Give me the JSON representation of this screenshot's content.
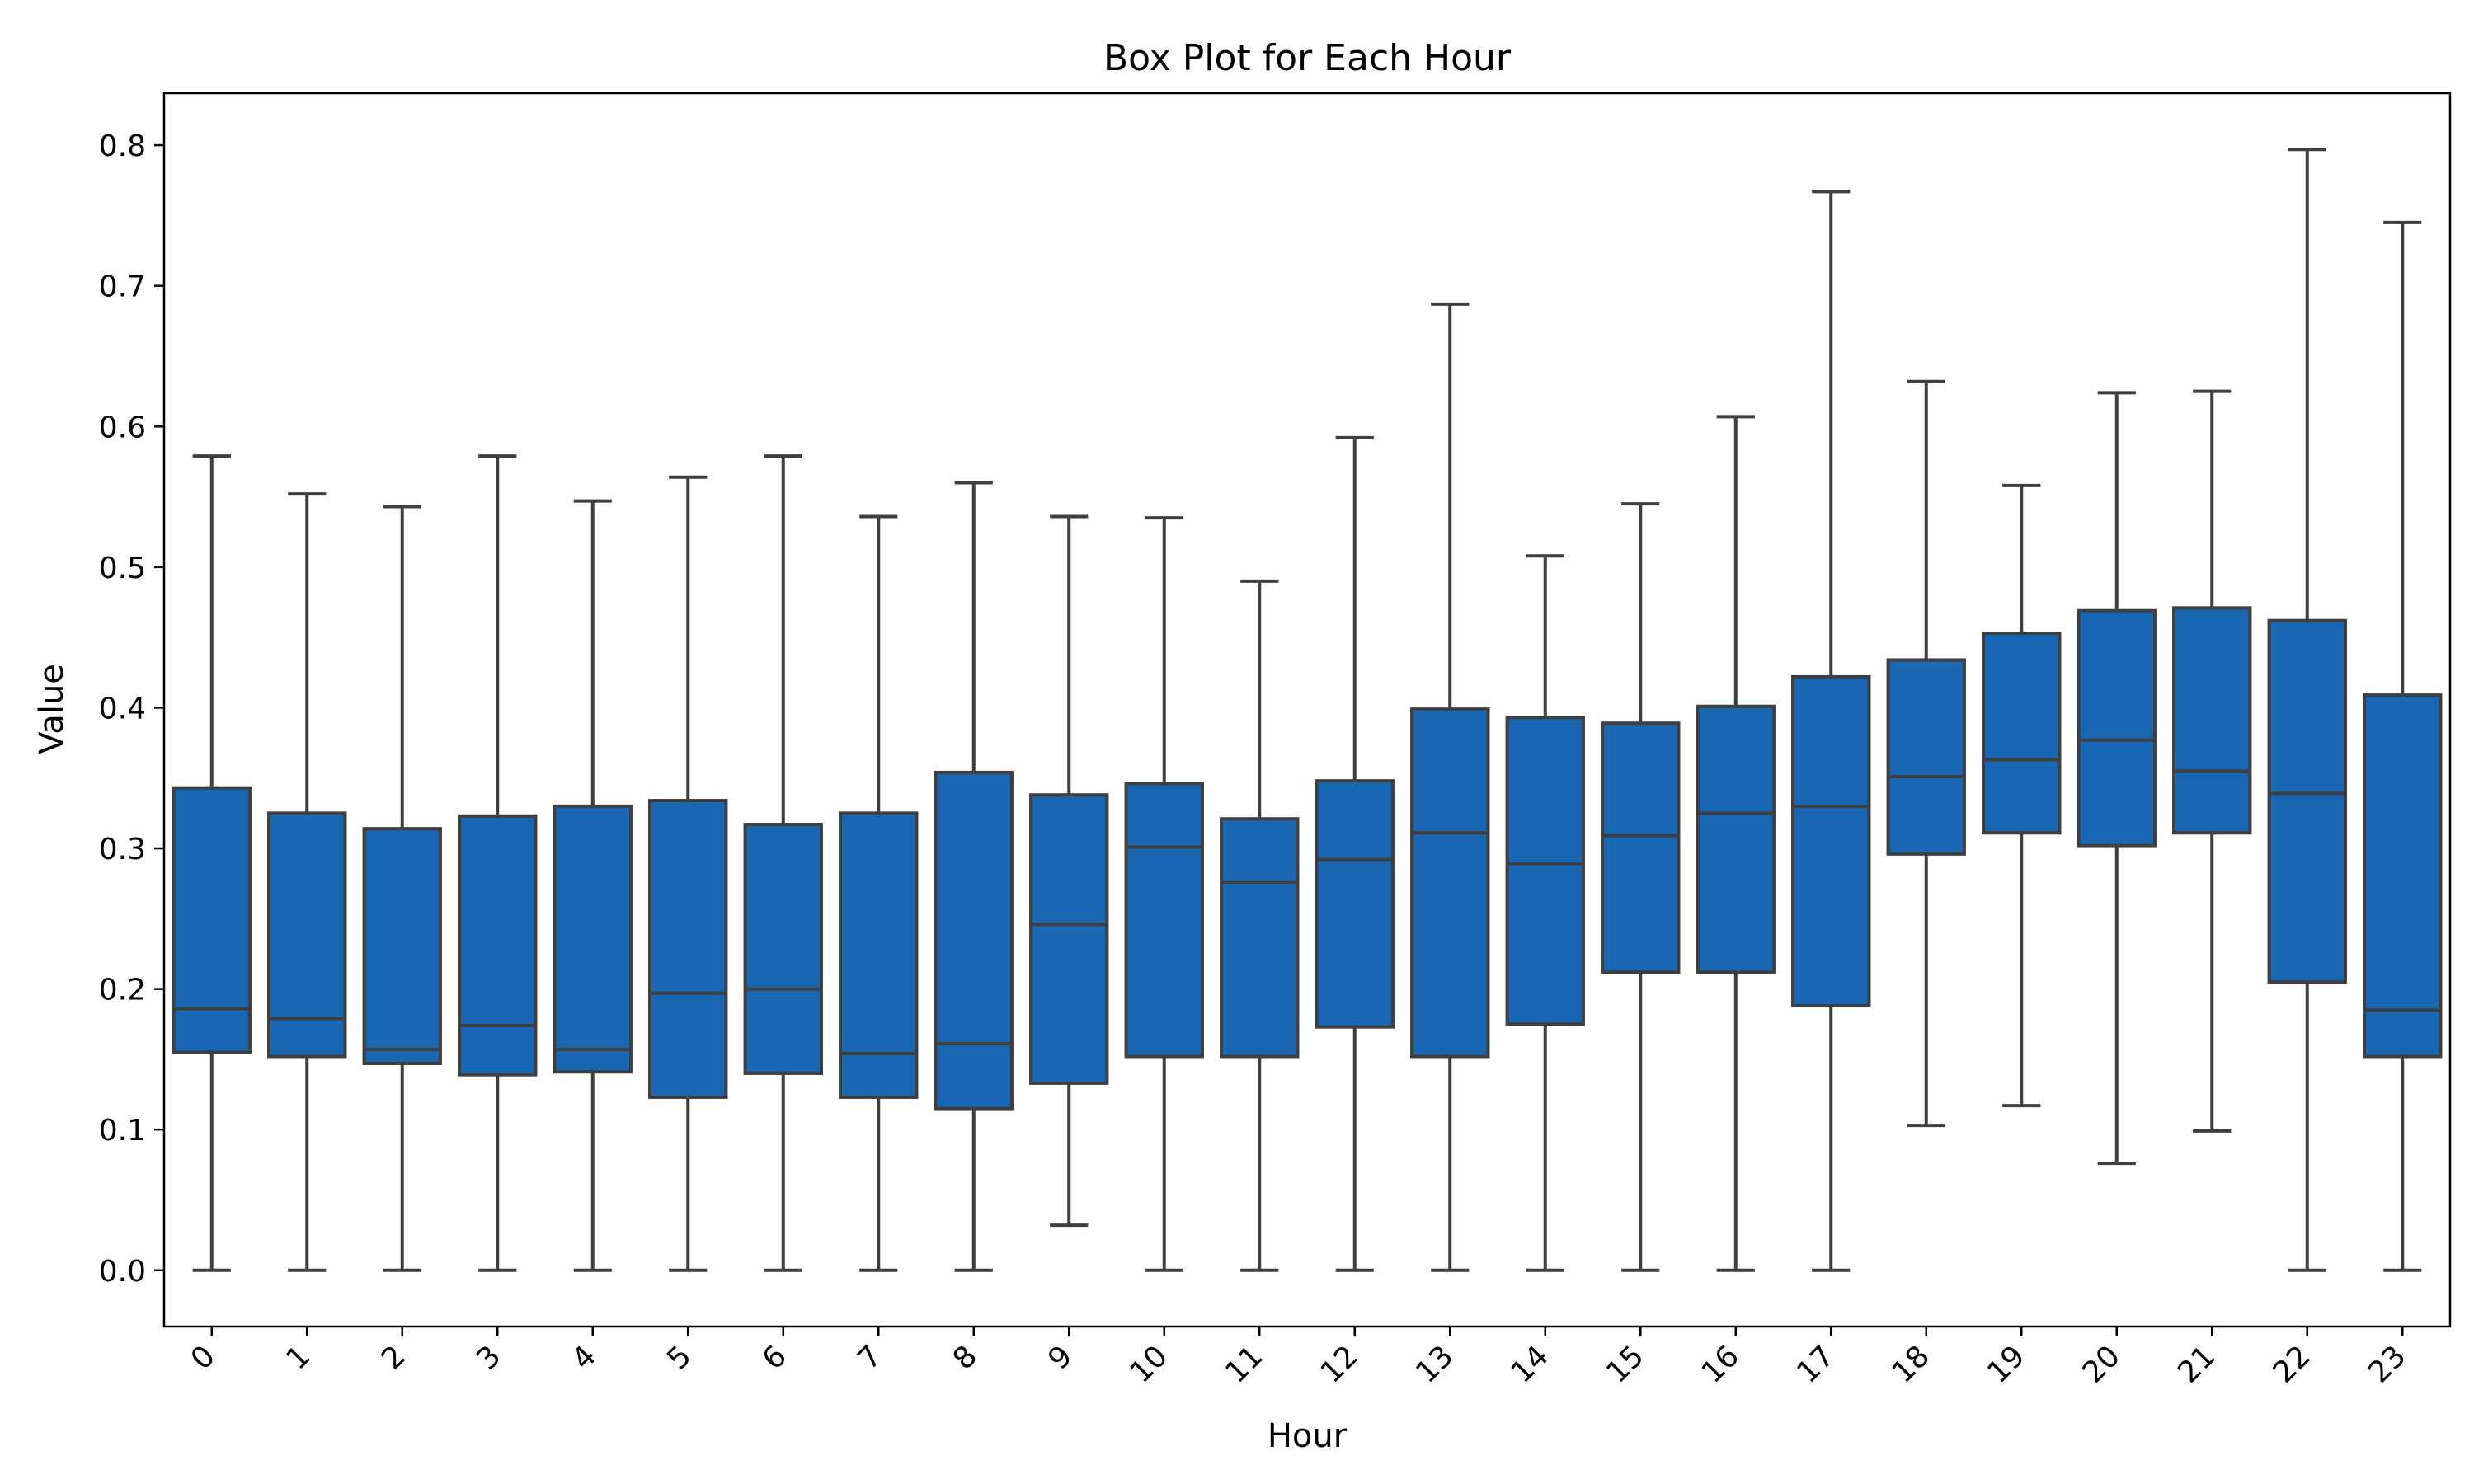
{
  "chart_data": {
    "type": "box",
    "title": "Box Plot for Each Hour",
    "xlabel": "Hour",
    "ylabel": "Value",
    "categories": [
      "0",
      "1",
      "2",
      "3",
      "4",
      "5",
      "6",
      "7",
      "8",
      "9",
      "10",
      "11",
      "12",
      "13",
      "14",
      "15",
      "16",
      "17",
      "18",
      "19",
      "20",
      "21",
      "22",
      "23"
    ],
    "boxes": [
      {
        "whislo": 0.0,
        "q1": 0.155,
        "med": 0.186,
        "q3": 0.343,
        "whishi": 0.579
      },
      {
        "whislo": 0.0,
        "q1": 0.152,
        "med": 0.179,
        "q3": 0.325,
        "whishi": 0.552
      },
      {
        "whislo": 0.0,
        "q1": 0.147,
        "med": 0.157,
        "q3": 0.314,
        "whishi": 0.543
      },
      {
        "whislo": 0.0,
        "q1": 0.139,
        "med": 0.174,
        "q3": 0.323,
        "whishi": 0.579
      },
      {
        "whislo": 0.0,
        "q1": 0.141,
        "med": 0.157,
        "q3": 0.33,
        "whishi": 0.547
      },
      {
        "whislo": 0.0,
        "q1": 0.123,
        "med": 0.197,
        "q3": 0.334,
        "whishi": 0.564
      },
      {
        "whislo": 0.0,
        "q1": 0.14,
        "med": 0.2,
        "q3": 0.317,
        "whishi": 0.579
      },
      {
        "whislo": 0.0,
        "q1": 0.123,
        "med": 0.154,
        "q3": 0.325,
        "whishi": 0.536
      },
      {
        "whislo": 0.0,
        "q1": 0.115,
        "med": 0.161,
        "q3": 0.354,
        "whishi": 0.56
      },
      {
        "whislo": 0.032,
        "q1": 0.133,
        "med": 0.246,
        "q3": 0.338,
        "whishi": 0.536
      },
      {
        "whislo": 0.0,
        "q1": 0.152,
        "med": 0.301,
        "q3": 0.346,
        "whishi": 0.535
      },
      {
        "whislo": 0.0,
        "q1": 0.152,
        "med": 0.276,
        "q3": 0.321,
        "whishi": 0.49
      },
      {
        "whislo": 0.0,
        "q1": 0.173,
        "med": 0.292,
        "q3": 0.348,
        "whishi": 0.592
      },
      {
        "whislo": 0.0,
        "q1": 0.152,
        "med": 0.311,
        "q3": 0.399,
        "whishi": 0.687
      },
      {
        "whislo": 0.0,
        "q1": 0.175,
        "med": 0.289,
        "q3": 0.393,
        "whishi": 0.508
      },
      {
        "whislo": 0.0,
        "q1": 0.212,
        "med": 0.309,
        "q3": 0.389,
        "whishi": 0.545
      },
      {
        "whislo": 0.0,
        "q1": 0.212,
        "med": 0.325,
        "q3": 0.401,
        "whishi": 0.607
      },
      {
        "whislo": 0.0,
        "q1": 0.188,
        "med": 0.33,
        "q3": 0.422,
        "whishi": 0.767
      },
      {
        "whislo": 0.103,
        "q1": 0.296,
        "med": 0.351,
        "q3": 0.434,
        "whishi": 0.632
      },
      {
        "whislo": 0.117,
        "q1": 0.311,
        "med": 0.363,
        "q3": 0.453,
        "whishi": 0.558
      },
      {
        "whislo": 0.076,
        "q1": 0.302,
        "med": 0.377,
        "q3": 0.469,
        "whishi": 0.624
      },
      {
        "whislo": 0.099,
        "q1": 0.311,
        "med": 0.355,
        "q3": 0.471,
        "whishi": 0.625
      },
      {
        "whislo": 0.0,
        "q1": 0.205,
        "med": 0.339,
        "q3": 0.462,
        "whishi": 0.797
      },
      {
        "whislo": 0.0,
        "q1": 0.152,
        "med": 0.185,
        "q3": 0.409,
        "whishi": 0.745
      }
    ],
    "yticks": [
      "0.0",
      "0.1",
      "0.2",
      "0.3",
      "0.4",
      "0.5",
      "0.6",
      "0.7",
      "0.8"
    ],
    "ylim": [
      -0.04,
      0.837
    ],
    "grid": false,
    "box_color": "#1967b3",
    "line_color": "#3f3f3f"
  }
}
